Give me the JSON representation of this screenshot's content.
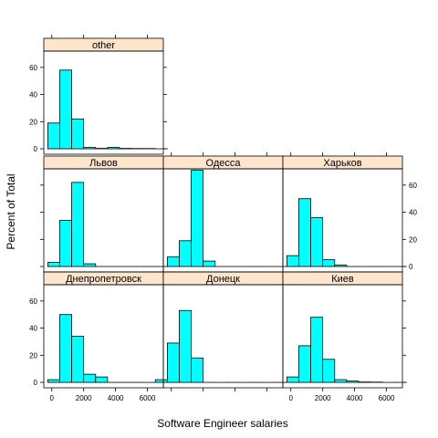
{
  "chart_data": {
    "type": "bar",
    "xlabel": "Software Engineer salaries",
    "ylabel": "Percent of Total",
    "xlim": [
      -500,
      7000
    ],
    "ylim": [
      -4,
      72
    ],
    "x_ticks": [
      0,
      2000,
      4000,
      6000
    ],
    "y_ticks": [
      0,
      20,
      40,
      60
    ],
    "bin_edges": [
      -250,
      500,
      1250,
      2000,
      2750,
      3500,
      4250,
      5000,
      5750,
      6500,
      7250
    ],
    "colors": {
      "bar_fill": "#00ffff",
      "strip_fill": "#ffe5cc",
      "frame": "#000000"
    },
    "panels": [
      {
        "name": "Днепропетровск",
        "row": 0,
        "col": 0,
        "values": [
          2,
          50,
          34,
          6,
          4,
          0,
          0,
          0,
          0,
          2
        ]
      },
      {
        "name": "Донецк",
        "row": 0,
        "col": 1,
        "values": [
          29,
          53,
          18,
          0,
          0,
          0,
          0,
          0,
          0,
          0
        ]
      },
      {
        "name": "Киев",
        "row": 0,
        "col": 2,
        "values": [
          4,
          27,
          48,
          17,
          2,
          1,
          0.3,
          0.2,
          0,
          0
        ]
      },
      {
        "name": "Львов",
        "row": 1,
        "col": 0,
        "values": [
          3,
          34,
          62,
          2,
          0,
          0,
          0,
          0,
          0,
          0
        ]
      },
      {
        "name": "Одесса",
        "row": 1,
        "col": 1,
        "values": [
          7,
          19,
          71,
          4,
          0,
          0,
          0,
          0,
          0,
          0
        ]
      },
      {
        "name": "Харьков",
        "row": 1,
        "col": 2,
        "values": [
          8,
          50,
          36,
          5,
          1,
          0,
          0,
          0,
          0,
          0
        ]
      },
      {
        "name": "other",
        "row": 2,
        "col": 0,
        "values": [
          19,
          58,
          22,
          1,
          0.3,
          1,
          0.3,
          0.2,
          0.2,
          0
        ]
      }
    ],
    "x_axis_panels": {
      "bottom_labeled": [
        0,
        2
      ],
      "bottom_unlabeled": [
        1
      ]
    },
    "y_axis_panels": {
      "left_labeled_rows": [
        0,
        2
      ],
      "right_labeled_rows": [
        1
      ]
    }
  }
}
